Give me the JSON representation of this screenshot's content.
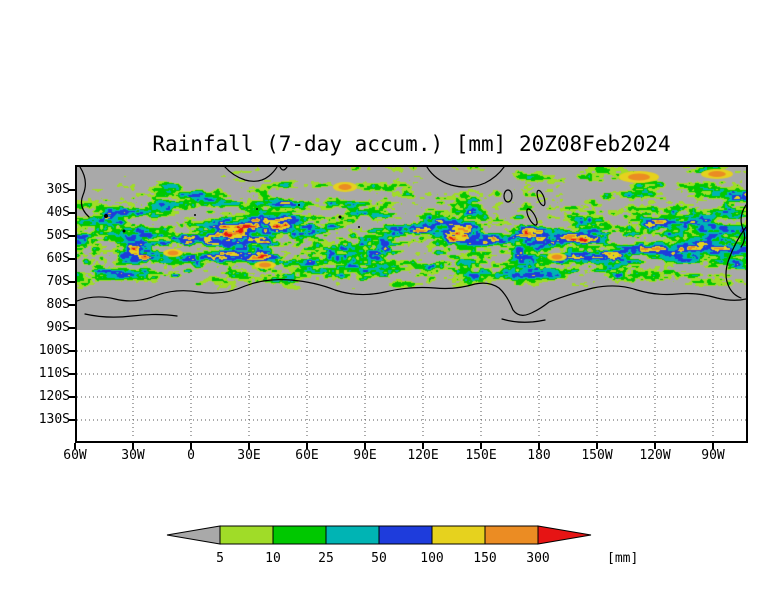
{
  "chart_data": {
    "type": "heatmap",
    "title": "Rainfall (7-day accum.) [mm] 20Z08Feb2024",
    "variable": "Rainfall (7-day accum.)",
    "units": "mm",
    "timestamp": "20Z08Feb2024",
    "x_tick_labels": [
      "60W",
      "30W",
      "0",
      "30E",
      "60E",
      "90E",
      "120E",
      "150E",
      "180",
      "150W",
      "120W",
      "90W"
    ],
    "y_tick_labels": [
      "30S",
      "40S",
      "50S",
      "60S",
      "70S",
      "80S",
      "90S",
      "100S",
      "110S",
      "120S",
      "130S"
    ],
    "colorbar": {
      "thresholds": [
        "5",
        "10",
        "25",
        "50",
        "100",
        "150",
        "300"
      ],
      "units_label": "[mm]",
      "segments": [
        {
          "name": "below-5",
          "color": "#a9a9a9"
        },
        {
          "name": "5-10",
          "color": "#a0dc28"
        },
        {
          "name": "10-25",
          "color": "#00c800"
        },
        {
          "name": "25-50",
          "color": "#00b4b4"
        },
        {
          "name": "50-100",
          "color": "#1e3cdc"
        },
        {
          "name": "100-150",
          "color": "#e6d21e"
        },
        {
          "name": "150-300",
          "color": "#eb8c23"
        },
        {
          "name": "above-300",
          "color": "#e61414"
        }
      ]
    },
    "map": {
      "no_data_color": "#a9a9a9",
      "ocean_band": "rainfall band between 35S and 75S",
      "blank_region": "white below 90S",
      "coastline_color": "#000000"
    }
  }
}
